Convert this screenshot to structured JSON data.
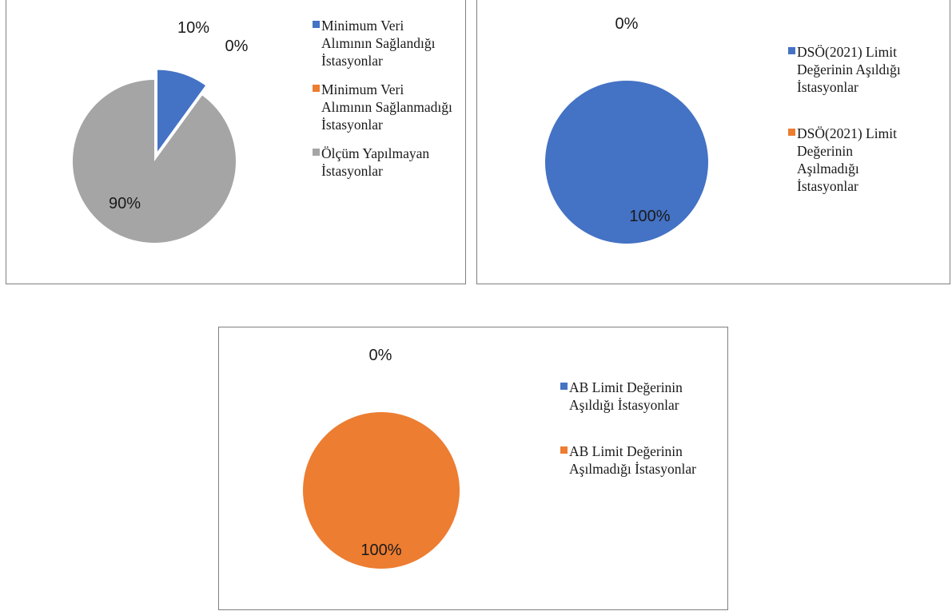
{
  "chart_data": [
    {
      "type": "pie",
      "slices": [
        {
          "label": "Minimum Veri Alımının Sağlandığı İstasyonlar",
          "value": 10,
          "color": "#4472C4",
          "data_label": "10%",
          "exploded": true
        },
        {
          "label": "Minimum Veri Alımının Sağlanmadığı İstasyonlar",
          "value": 0,
          "color": "#ED7D31",
          "data_label": "0%"
        },
        {
          "label": "Ölçüm Yapılmayan İstasyonlar",
          "value": 90,
          "color": "#A5A5A5",
          "data_label": "90%"
        }
      ],
      "legend_position": "right"
    },
    {
      "type": "pie",
      "slices": [
        {
          "label": "DSÖ(2021) Limit Değerinin Aşıldığı İstasyonlar",
          "value": 100,
          "color": "#4472C4",
          "data_label": "100%"
        },
        {
          "label": "DSÖ(2021) Limit Değerinin Aşılmadığı İstasyonlar",
          "value": 0,
          "color": "#ED7D31",
          "data_label": "0%"
        }
      ],
      "legend_position": "right"
    },
    {
      "type": "pie",
      "slices": [
        {
          "label": "AB Limit Değerinin Aşıldığı İstasyonlar",
          "value": 0,
          "color": "#4472C4",
          "data_label": "0%"
        },
        {
          "label": "AB Limit Değerinin Aşılmadığı İstasyonlar",
          "value": 100,
          "color": "#ED7D31",
          "data_label": "100%"
        }
      ],
      "legend_position": "right"
    }
  ]
}
